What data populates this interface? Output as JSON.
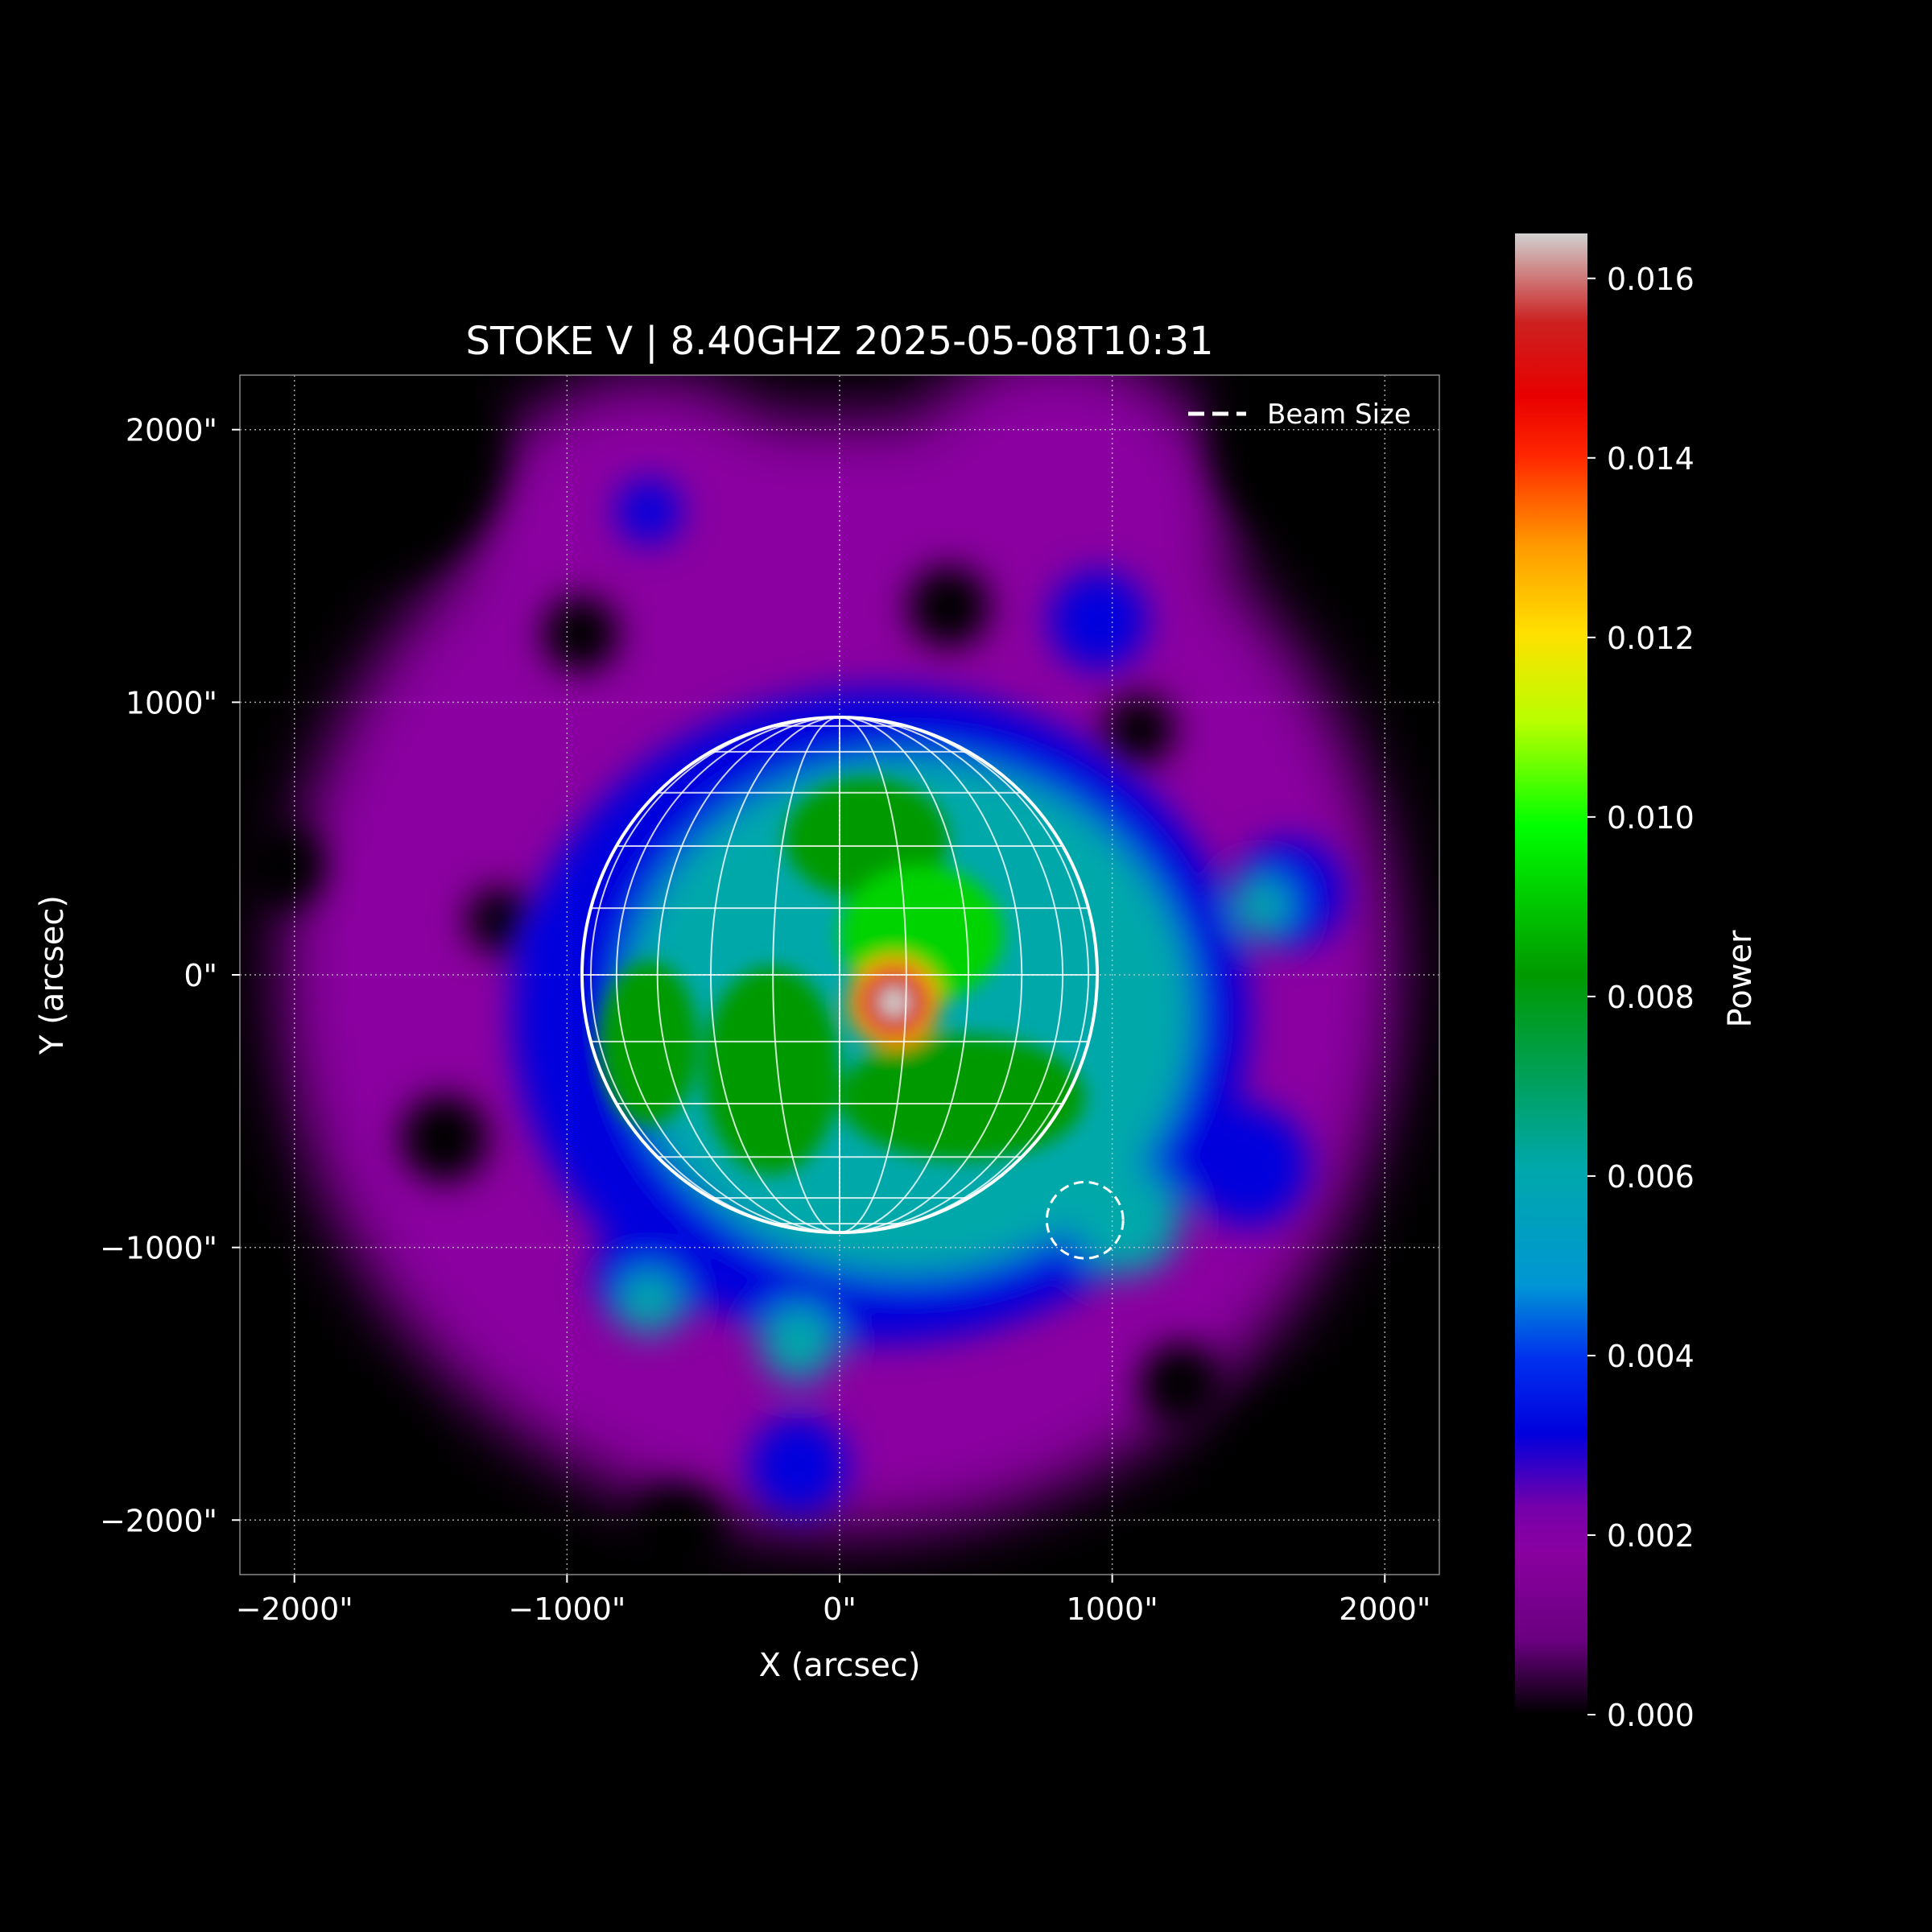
{
  "chart_data": {
    "type": "heatmap",
    "title": "STOKE V | 8.40GHZ 2025-05-08T10:31",
    "xlabel": "X (arcsec)",
    "ylabel": "Y (arcsec)",
    "xlim": [
      -2200,
      2200
    ],
    "ylim": [
      -2200,
      2200
    ],
    "x_ticks": [
      -2000,
      -1000,
      0,
      1000,
      2000
    ],
    "y_ticks": [
      -2000,
      -1000,
      0,
      1000,
      2000
    ],
    "x_tick_labels": [
      "−2000\"",
      "−1000\"",
      "0\"",
      "1000\"",
      "2000\""
    ],
    "y_tick_labels": [
      "−2000\"",
      "−1000\"",
      "0\"",
      "1000\"",
      "2000\""
    ],
    "grid": true,
    "legend": {
      "position": "top-right",
      "entries": [
        {
          "label": "Beam Size",
          "style": "dashed",
          "color": "#ffffff"
        }
      ]
    },
    "colorbar": {
      "label": "Power",
      "vmin": 0.0,
      "vmax": 0.0165,
      "ticks": [
        0.0,
        0.002,
        0.004,
        0.006,
        0.008,
        0.01,
        0.012,
        0.014,
        0.016
      ],
      "tick_labels": [
        "0.000",
        "0.002",
        "0.004",
        "0.006",
        "0.008",
        "0.010",
        "0.012",
        "0.014",
        "0.016"
      ],
      "colormap": "nipy_spectral"
    },
    "solar_disk": {
      "center": [
        0,
        0
      ],
      "radius_arcsec": 945
    },
    "beam": {
      "center": [
        900,
        -900
      ],
      "radius_arcsec": 140
    },
    "peak": {
      "x": 200,
      "y": -100,
      "value": 0.0165
    }
  }
}
